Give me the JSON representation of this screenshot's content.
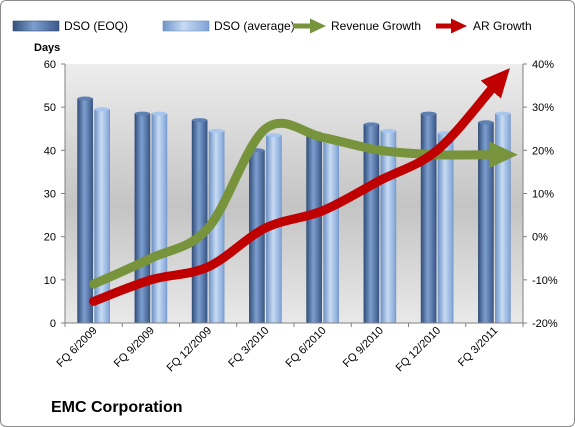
{
  "chart_data": {
    "type": "bar",
    "company": "EMC Corporation",
    "y_axis_title": "Days",
    "categories": [
      "FQ 6/2009",
      "FQ 9/2009",
      "FQ 12/2009",
      "FQ 3/2010",
      "FQ 6/2010",
      "FQ 9/2010",
      "FQ 12/2010",
      "FQ 3/2011"
    ],
    "ylim": [
      0,
      60
    ],
    "y_ticks": [
      0,
      10,
      20,
      30,
      40,
      50,
      60
    ],
    "y2lim": [
      -20,
      40
    ],
    "y2_ticks": [
      "-20%",
      "-10%",
      "0%",
      "10%",
      "20%",
      "30%",
      "40%"
    ],
    "series": [
      {
        "name": "DSO (EOQ)",
        "type": "bar",
        "axis": "left",
        "color": "#4a6fa5",
        "values": [
          52,
          48.5,
          47,
          40,
          44,
          46,
          48.5,
          46.5
        ]
      },
      {
        "name": "DSO (average)",
        "type": "bar",
        "axis": "left",
        "color": "#8fb3e0",
        "values": [
          49.5,
          48.5,
          44.5,
          43.5,
          42,
          44.5,
          44,
          48.5
        ]
      },
      {
        "name": "Revenue Growth",
        "type": "line",
        "axis": "right",
        "color": "#77933c",
        "values": [
          -11,
          -5,
          2,
          25,
          23,
          20,
          19,
          19
        ]
      },
      {
        "name": "AR Growth",
        "type": "line",
        "axis": "right",
        "color": "#c00000",
        "values": [
          -15,
          -10,
          -7,
          2,
          6,
          13,
          20,
          35
        ]
      }
    ],
    "legend": "top",
    "grid": false
  }
}
